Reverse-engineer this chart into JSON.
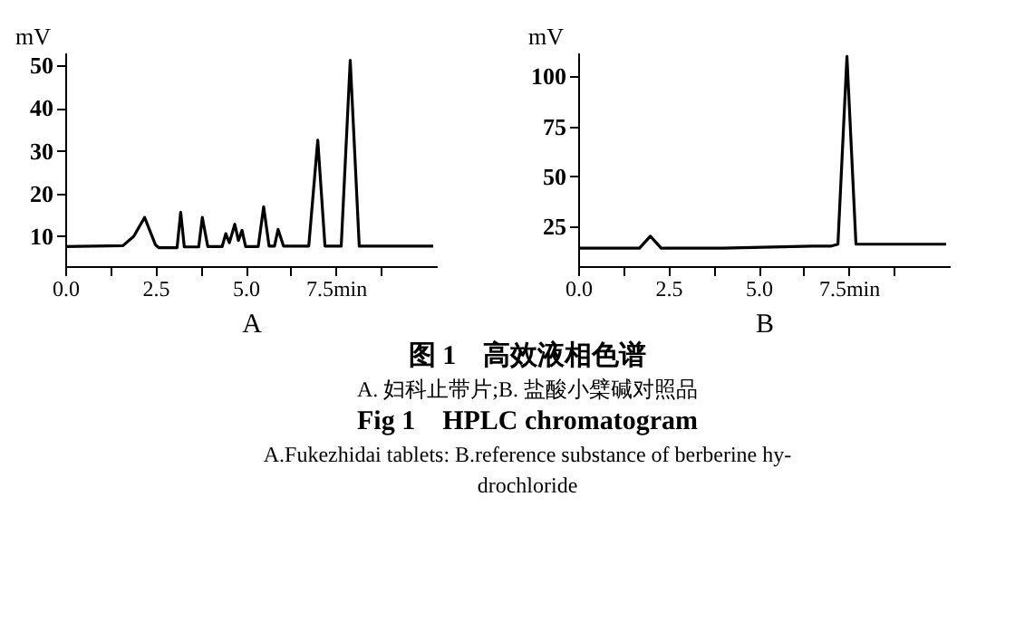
{
  "chart_data": [
    {
      "type": "line",
      "xlabel": "A",
      "ylabel": "mV",
      "xlim": [
        0,
        10.3
      ],
      "ylim": [
        3,
        53
      ],
      "xticks": [
        {
          "value": 0,
          "label": "0.0"
        },
        {
          "value": 1.25,
          "label": null
        },
        2.5,
        {
          "value": 3.75,
          "label": null
        },
        {
          "value": 5,
          "label": "5.0"
        },
        {
          "value": 6.25,
          "label": null
        },
        {
          "value": 7.5,
          "label": "7.5min"
        },
        {
          "value": 8.75,
          "label": null
        }
      ],
      "yticks": [
        10,
        20,
        30,
        40,
        50
      ],
      "grid": false,
      "legend": false,
      "marker": "none",
      "line_style": "solid",
      "series": [
        {
          "color": "#000000",
          "x": [
            0,
            1.6,
            1.9,
            2.2,
            2.5,
            2.6,
            3.1,
            3.2,
            3.3,
            3.7,
            3.8,
            3.95,
            4.35,
            4.45,
            4.55,
            4.7,
            4.8,
            4.9,
            5.0,
            5.35,
            5.5,
            5.65,
            5.8,
            5.9,
            6.05,
            6.75,
            7.0,
            7.2,
            7.65,
            7.9,
            8.15,
            10.2
          ],
          "values": [
            7.6,
            7.8,
            10,
            14.4,
            8,
            7.3,
            7.3,
            15.6,
            7.5,
            7.5,
            14.4,
            7.6,
            7.6,
            10.6,
            8.5,
            12.8,
            9,
            11.4,
            7.6,
            7.6,
            16.9,
            7.7,
            7.7,
            11.6,
            7.7,
            7.7,
            32.5,
            7.7,
            7.7,
            51.2,
            7.7,
            7.7
          ]
        }
      ],
      "annotations": [
        "图 1　高效液相色谱",
        "A. 妇科止带片;B. 盐酸小檗碱对照品",
        "Fig 1　HPLC chromatogram",
        "A.Fukezhidai tablets:  B.reference substance of berberine hy-",
        "drochloride"
      ]
    },
    {
      "type": "line",
      "xlabel": "B",
      "ylabel": "mV",
      "xlim": [
        0,
        10.3
      ],
      "ylim": [
        5,
        112
      ],
      "xticks": [
        {
          "value": 0,
          "label": "0.0"
        },
        {
          "value": 1.25,
          "label": null
        },
        2.5,
        {
          "value": 3.75,
          "label": null
        },
        {
          "value": 5,
          "label": "5.0"
        },
        {
          "value": 6.25,
          "label": null
        },
        {
          "value": 7.5,
          "label": "7.5min"
        },
        {
          "value": 8.75,
          "label": null
        }
      ],
      "yticks": [
        25,
        50,
        75,
        100
      ],
      "grid": false,
      "legend": false,
      "marker": "none",
      "line_style": "solid",
      "series": [
        {
          "color": "#000000",
          "x": [
            0,
            1.7,
            2.0,
            2.3,
            2.6,
            4,
            6.5,
            7.0,
            7.2,
            7.45,
            7.7,
            10.2
          ],
          "values": [
            14,
            14,
            20,
            14,
            14,
            14,
            15,
            15,
            16,
            110,
            16,
            16
          ]
        }
      ]
    }
  ]
}
